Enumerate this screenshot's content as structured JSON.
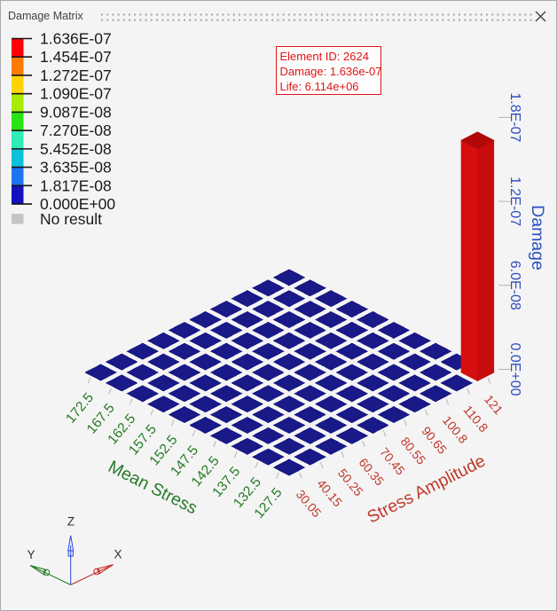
{
  "window": {
    "title": "Damage Matrix",
    "close_label": "close"
  },
  "legend": {
    "labels": [
      "1.636E-07",
      "1.454E-07",
      "1.272E-07",
      "1.090E-07",
      "9.087E-08",
      "7.270E-08",
      "5.452E-08",
      "3.635E-08",
      "1.817E-08",
      "0.000E+00"
    ],
    "band_colors": [
      "#f80307",
      "#fc7b03",
      "#fdd303",
      "#a5ec06",
      "#28e414",
      "#2fecb9",
      "#0cc0dc",
      "#1e74f0",
      "#1310bf"
    ],
    "no_result_label": "No result",
    "no_result_color": "#c4c4c4",
    "text_color": "#1a1a1a"
  },
  "tooltip": {
    "lines": [
      "Element ID: 2624",
      "Damage: 1.636e-07",
      "Life: 6.114e+06"
    ],
    "color": "#e11414"
  },
  "chart_data": {
    "type": "3d-bar",
    "title": "Damage Matrix",
    "x_axis": {
      "title": "Mean Stress",
      "color": "#267a26",
      "labels": [
        "172.5",
        "167.5",
        "162.5",
        "157.5",
        "152.5",
        "147.5",
        "142.5",
        "137.5",
        "132.5",
        "127.5"
      ]
    },
    "y_axis": {
      "title": "Stress Amplitude",
      "color": "#c0392b",
      "labels": [
        "30.05",
        "40.15",
        "50.25",
        "60.35",
        "70.45",
        "80.55",
        "90.65",
        "100.8",
        "110.8",
        "121"
      ]
    },
    "z_axis": {
      "title": "Damage",
      "color": "#2d4ec0",
      "labels": [
        "0.0E+00",
        "6.0E-08",
        "1.2E-07",
        "1.8E-07"
      ],
      "tick_values": [
        0,
        6e-08,
        1.2e-07,
        1.8e-07
      ],
      "max": 1.8e-07
    },
    "grid": {
      "rows": 10,
      "cols": 10
    },
    "tile_color": "#191988",
    "bar": {
      "mean_stress": "127.5",
      "stress_amplitude": "121",
      "value": 1.636e-07,
      "face_left": "#d60e0e",
      "face_right": "#c80b0b",
      "face_top": "#b20808"
    },
    "values": [
      [
        0,
        0,
        0,
        0,
        0,
        0,
        0,
        0,
        0,
        0
      ],
      [
        0,
        0,
        0,
        0,
        0,
        0,
        0,
        0,
        0,
        0
      ],
      [
        0,
        0,
        0,
        0,
        0,
        0,
        0,
        0,
        0,
        0
      ],
      [
        0,
        0,
        0,
        0,
        0,
        0,
        0,
        0,
        0,
        0
      ],
      [
        0,
        0,
        0,
        0,
        0,
        0,
        0,
        0,
        0,
        0
      ],
      [
        0,
        0,
        0,
        0,
        0,
        0,
        0,
        0,
        0,
        0
      ],
      [
        0,
        0,
        0,
        0,
        0,
        0,
        0,
        0,
        0,
        0
      ],
      [
        0,
        0,
        0,
        0,
        0,
        0,
        0,
        0,
        0,
        0
      ],
      [
        0,
        0,
        0,
        0,
        0,
        0,
        0,
        0,
        0,
        0
      ],
      [
        0,
        0,
        0,
        0,
        0,
        0,
        0,
        0,
        0,
        1.636e-07
      ]
    ]
  },
  "triad": {
    "axes": [
      {
        "label": "X",
        "color": "#cc2020"
      },
      {
        "label": "Y",
        "color": "#1f7a1f"
      },
      {
        "label": "Z",
        "color": "#2a46dd"
      }
    ],
    "label_color": "#2e2e2e"
  }
}
